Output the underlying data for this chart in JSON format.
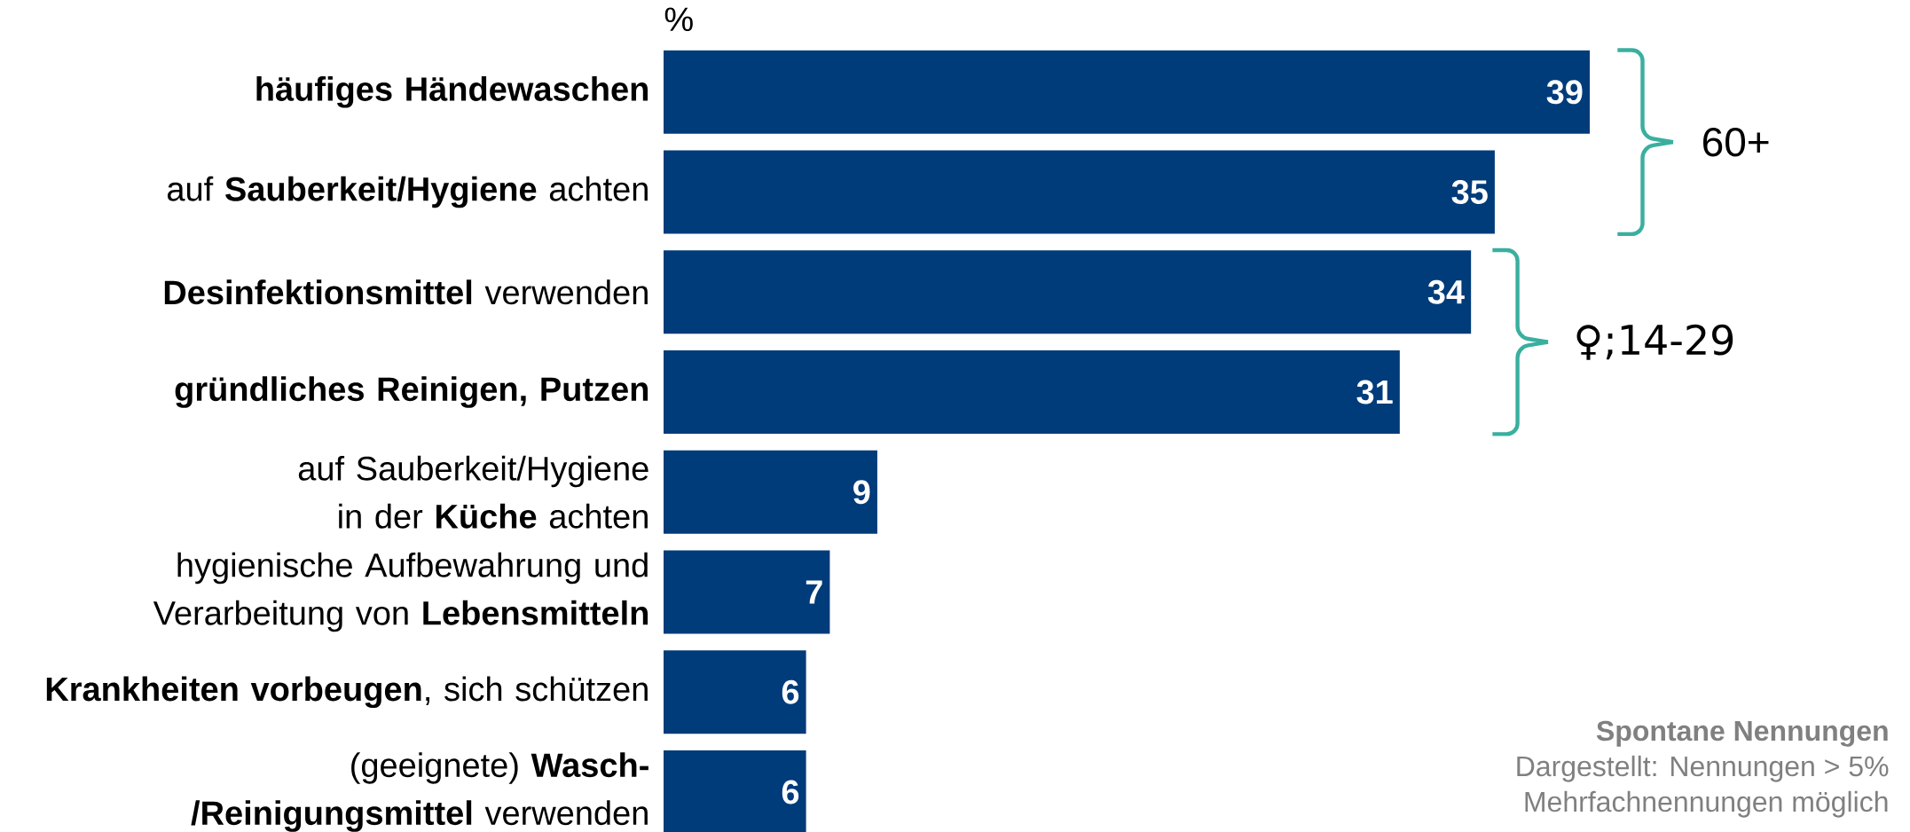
{
  "chart_data": {
    "type": "bar",
    "orientation": "horizontal",
    "xlabel": "%",
    "categories": [
      "**häufiges Händewaschen**",
      "auf **Sauberkeit/Hygiene** achten",
      "**Desinfektionsmittel** verwenden",
      "**gründliches Reinigen, Putzen**",
      "auf Sauberkeit/Hygiene in der **Küche** achten",
      "hygienische Aufbewahrung und Verarbeitung von **Lebensmitteln**",
      "**Krankheiten vorbeugen**, sich schützen",
      "(geeignete) **Wasch-/Reinigungsmittel** verwenden"
    ],
    "values": [
      39,
      35,
      34,
      31,
      9,
      7,
      6,
      6
    ],
    "color": "#003b7a",
    "data_labels": true,
    "annotations": [
      "60+",
      "♀;14-29",
      "Spontane Nennungen",
      "Dargestellt: Nennungen > 5%",
      "Mehrfachnennungen möglich"
    ]
  }
}
